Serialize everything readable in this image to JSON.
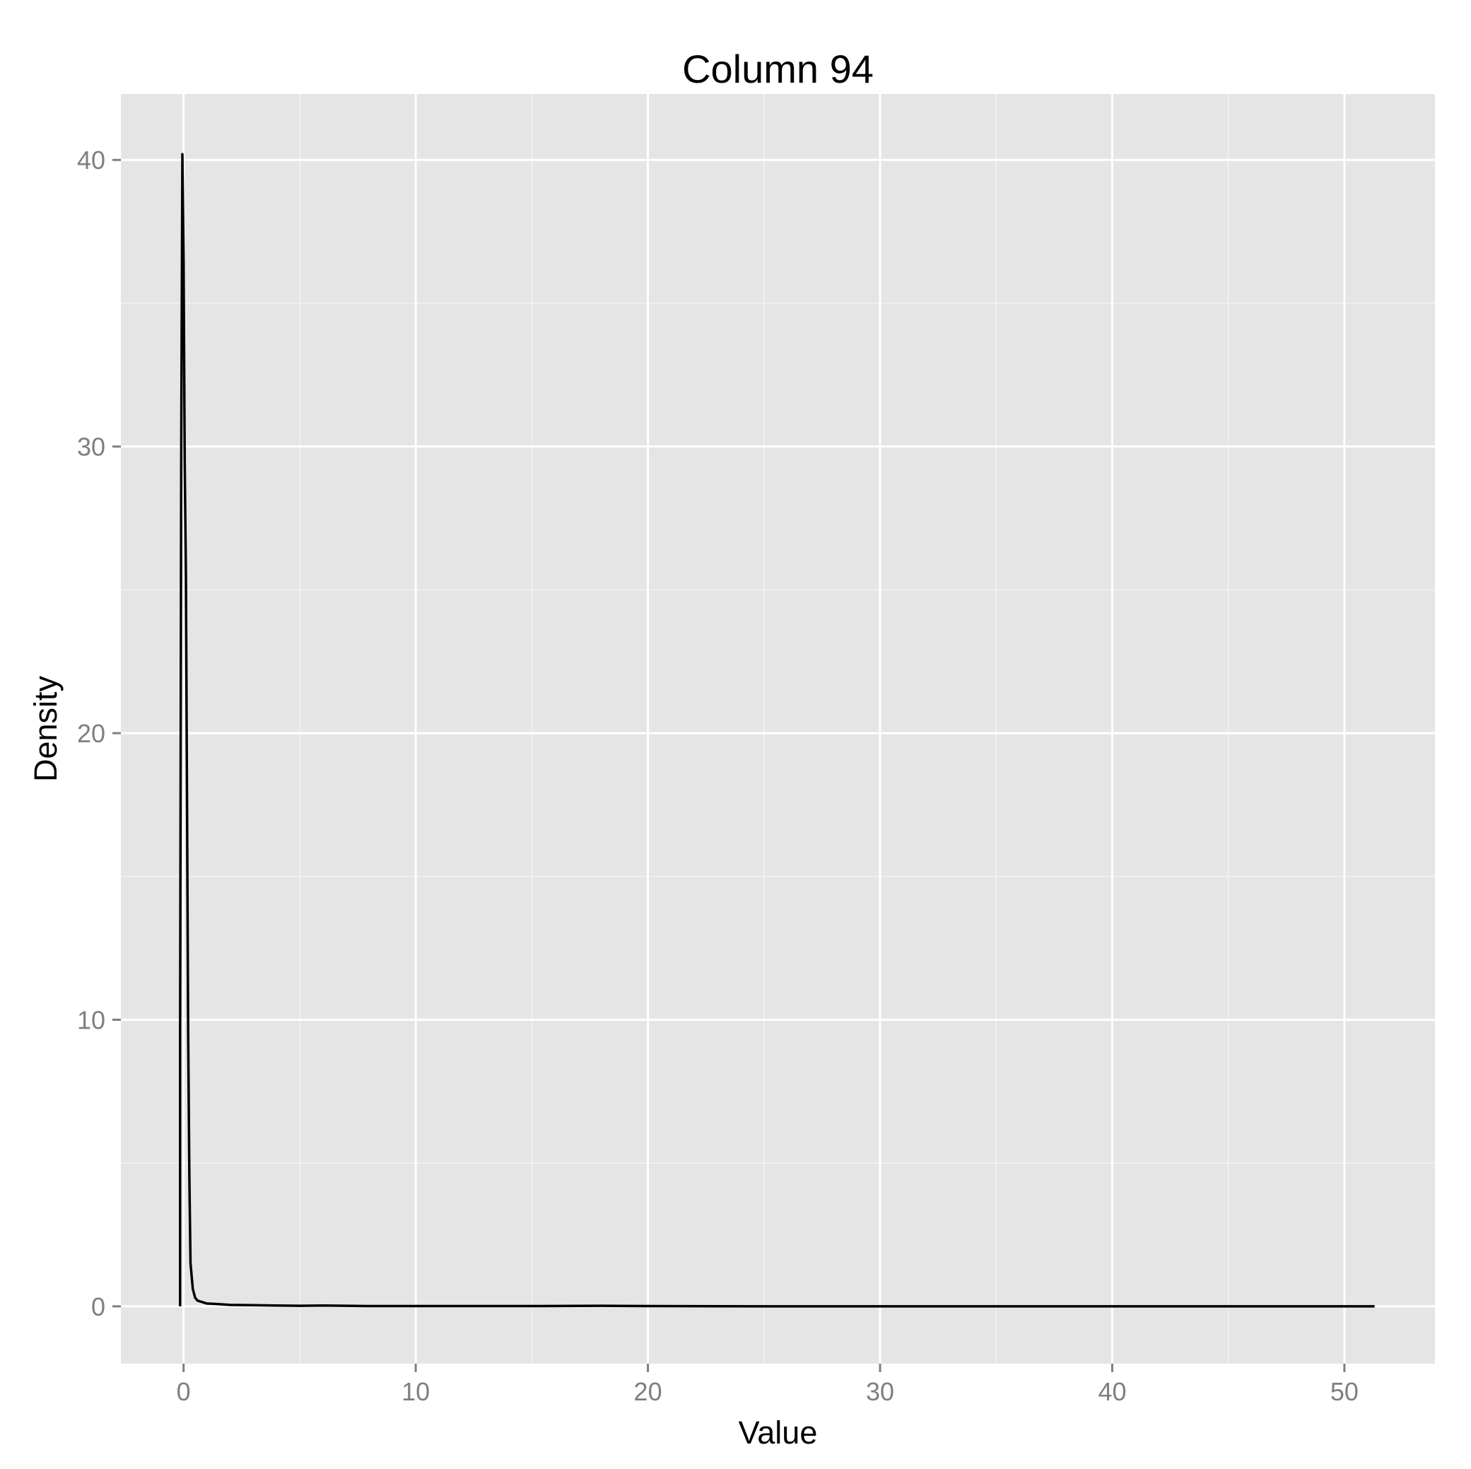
{
  "chart_data": {
    "type": "line",
    "title": "Column 94",
    "xlabel": "Value",
    "ylabel": "Density",
    "xlim": [
      -2.7,
      53.9
    ],
    "ylim": [
      -2,
      42.3
    ],
    "x_ticks": [
      0,
      10,
      20,
      30,
      40,
      50
    ],
    "y_ticks": [
      0,
      10,
      20,
      30,
      40
    ],
    "grid": true,
    "background": "#e5e5e5",
    "line_color": "#000000",
    "series": [
      {
        "x": [
          -0.15,
          -0.15,
          -0.1,
          -0.05,
          0.0,
          0.05,
          0.1,
          0.15,
          0.2,
          0.25,
          0.3,
          0.4,
          0.5,
          0.6,
          0.8,
          1.0,
          1.5,
          2.0,
          3.0,
          4.0,
          5.0,
          6.0,
          7.0,
          8.0,
          10.0,
          15.0,
          18.0,
          20.0,
          25.0,
          30.0,
          35.0,
          40.0,
          45.0,
          51.3
        ],
        "y": [
          0,
          9.5,
          30.0,
          40.2,
          36.5,
          29.5,
          25.5,
          17.5,
          9.5,
          4.5,
          1.5,
          0.6,
          0.3,
          0.2,
          0.15,
          0.1,
          0.08,
          0.05,
          0.04,
          0.03,
          0.02,
          0.03,
          0.02,
          0.01,
          0.01,
          0.01,
          0.02,
          0.01,
          0.0,
          0.0,
          0.0,
          0.0,
          0.0,
          0.0
        ]
      }
    ]
  }
}
